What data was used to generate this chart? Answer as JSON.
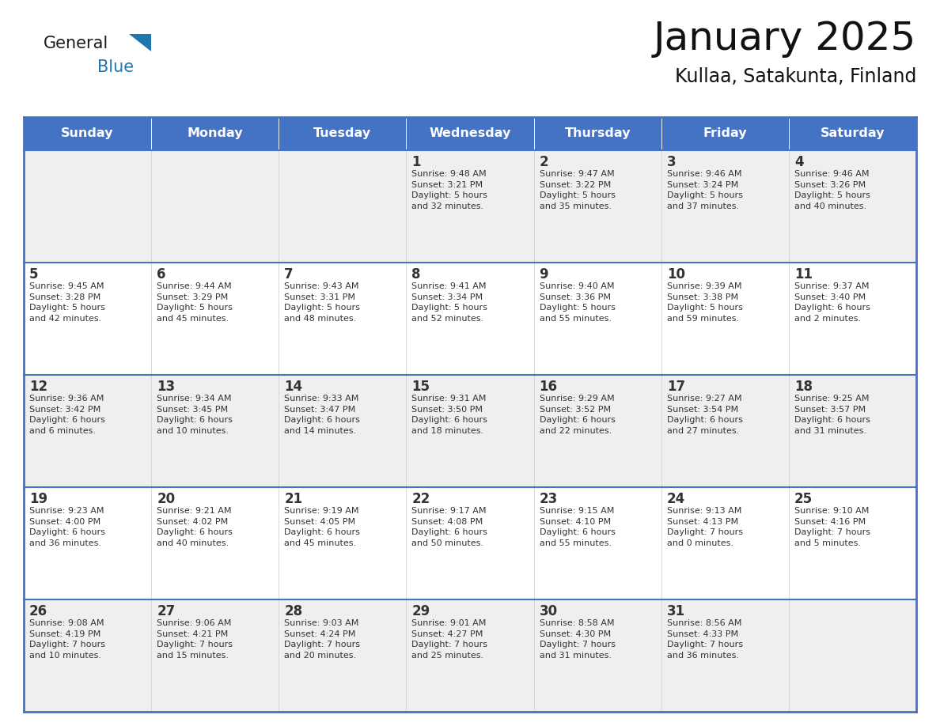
{
  "title": "January 2025",
  "subtitle": "Kullaa, Satakunta, Finland",
  "header_bg": "#4472C4",
  "header_text_color": "#FFFFFF",
  "cell_bg_odd": "#EFEFEF",
  "cell_bg_even": "#FFFFFF",
  "cell_text_color": "#333333",
  "day_num_color": "#333333",
  "border_color": "#4472C4",
  "days_of_week": [
    "Sunday",
    "Monday",
    "Tuesday",
    "Wednesday",
    "Thursday",
    "Friday",
    "Saturday"
  ],
  "weeks": [
    [
      {
        "day": "",
        "info": ""
      },
      {
        "day": "",
        "info": ""
      },
      {
        "day": "",
        "info": ""
      },
      {
        "day": "1",
        "info": "Sunrise: 9:48 AM\nSunset: 3:21 PM\nDaylight: 5 hours\nand 32 minutes."
      },
      {
        "day": "2",
        "info": "Sunrise: 9:47 AM\nSunset: 3:22 PM\nDaylight: 5 hours\nand 35 minutes."
      },
      {
        "day": "3",
        "info": "Sunrise: 9:46 AM\nSunset: 3:24 PM\nDaylight: 5 hours\nand 37 minutes."
      },
      {
        "day": "4",
        "info": "Sunrise: 9:46 AM\nSunset: 3:26 PM\nDaylight: 5 hours\nand 40 minutes."
      }
    ],
    [
      {
        "day": "5",
        "info": "Sunrise: 9:45 AM\nSunset: 3:28 PM\nDaylight: 5 hours\nand 42 minutes."
      },
      {
        "day": "6",
        "info": "Sunrise: 9:44 AM\nSunset: 3:29 PM\nDaylight: 5 hours\nand 45 minutes."
      },
      {
        "day": "7",
        "info": "Sunrise: 9:43 AM\nSunset: 3:31 PM\nDaylight: 5 hours\nand 48 minutes."
      },
      {
        "day": "8",
        "info": "Sunrise: 9:41 AM\nSunset: 3:34 PM\nDaylight: 5 hours\nand 52 minutes."
      },
      {
        "day": "9",
        "info": "Sunrise: 9:40 AM\nSunset: 3:36 PM\nDaylight: 5 hours\nand 55 minutes."
      },
      {
        "day": "10",
        "info": "Sunrise: 9:39 AM\nSunset: 3:38 PM\nDaylight: 5 hours\nand 59 minutes."
      },
      {
        "day": "11",
        "info": "Sunrise: 9:37 AM\nSunset: 3:40 PM\nDaylight: 6 hours\nand 2 minutes."
      }
    ],
    [
      {
        "day": "12",
        "info": "Sunrise: 9:36 AM\nSunset: 3:42 PM\nDaylight: 6 hours\nand 6 minutes."
      },
      {
        "day": "13",
        "info": "Sunrise: 9:34 AM\nSunset: 3:45 PM\nDaylight: 6 hours\nand 10 minutes."
      },
      {
        "day": "14",
        "info": "Sunrise: 9:33 AM\nSunset: 3:47 PM\nDaylight: 6 hours\nand 14 minutes."
      },
      {
        "day": "15",
        "info": "Sunrise: 9:31 AM\nSunset: 3:50 PM\nDaylight: 6 hours\nand 18 minutes."
      },
      {
        "day": "16",
        "info": "Sunrise: 9:29 AM\nSunset: 3:52 PM\nDaylight: 6 hours\nand 22 minutes."
      },
      {
        "day": "17",
        "info": "Sunrise: 9:27 AM\nSunset: 3:54 PM\nDaylight: 6 hours\nand 27 minutes."
      },
      {
        "day": "18",
        "info": "Sunrise: 9:25 AM\nSunset: 3:57 PM\nDaylight: 6 hours\nand 31 minutes."
      }
    ],
    [
      {
        "day": "19",
        "info": "Sunrise: 9:23 AM\nSunset: 4:00 PM\nDaylight: 6 hours\nand 36 minutes."
      },
      {
        "day": "20",
        "info": "Sunrise: 9:21 AM\nSunset: 4:02 PM\nDaylight: 6 hours\nand 40 minutes."
      },
      {
        "day": "21",
        "info": "Sunrise: 9:19 AM\nSunset: 4:05 PM\nDaylight: 6 hours\nand 45 minutes."
      },
      {
        "day": "22",
        "info": "Sunrise: 9:17 AM\nSunset: 4:08 PM\nDaylight: 6 hours\nand 50 minutes."
      },
      {
        "day": "23",
        "info": "Sunrise: 9:15 AM\nSunset: 4:10 PM\nDaylight: 6 hours\nand 55 minutes."
      },
      {
        "day": "24",
        "info": "Sunrise: 9:13 AM\nSunset: 4:13 PM\nDaylight: 7 hours\nand 0 minutes."
      },
      {
        "day": "25",
        "info": "Sunrise: 9:10 AM\nSunset: 4:16 PM\nDaylight: 7 hours\nand 5 minutes."
      }
    ],
    [
      {
        "day": "26",
        "info": "Sunrise: 9:08 AM\nSunset: 4:19 PM\nDaylight: 7 hours\nand 10 minutes."
      },
      {
        "day": "27",
        "info": "Sunrise: 9:06 AM\nSunset: 4:21 PM\nDaylight: 7 hours\nand 15 minutes."
      },
      {
        "day": "28",
        "info": "Sunrise: 9:03 AM\nSunset: 4:24 PM\nDaylight: 7 hours\nand 20 minutes."
      },
      {
        "day": "29",
        "info": "Sunrise: 9:01 AM\nSunset: 4:27 PM\nDaylight: 7 hours\nand 25 minutes."
      },
      {
        "day": "30",
        "info": "Sunrise: 8:58 AM\nSunset: 4:30 PM\nDaylight: 7 hours\nand 31 minutes."
      },
      {
        "day": "31",
        "info": "Sunrise: 8:56 AM\nSunset: 4:33 PM\nDaylight: 7 hours\nand 36 minutes."
      },
      {
        "day": "",
        "info": ""
      }
    ]
  ],
  "logo_general_color": "#1a1a1a",
  "logo_blue_color": "#2176AE",
  "logo_triangle_color": "#2176AE",
  "fig_width": 11.88,
  "fig_height": 9.18,
  "dpi": 100
}
